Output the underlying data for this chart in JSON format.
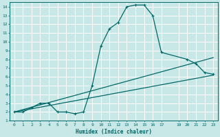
{
  "xlabel": "Humidex (Indice chaleur)",
  "bg_color": "#c8e8e8",
  "grid_color": "#ffffff",
  "line_color": "#006666",
  "xlim": [
    -0.5,
    23.5
  ],
  "ylim": [
    1,
    14.5
  ],
  "xticks": [
    0,
    1,
    2,
    3,
    4,
    5,
    6,
    7,
    8,
    9,
    10,
    11,
    12,
    13,
    14,
    15,
    16,
    17,
    19,
    20,
    21,
    22,
    23
  ],
  "yticks": [
    1,
    2,
    3,
    4,
    5,
    6,
    7,
    8,
    9,
    10,
    11,
    12,
    13,
    14
  ],
  "curve1_x": [
    0,
    1,
    2,
    3,
    4,
    5,
    6,
    7,
    8,
    9,
    10,
    11,
    12,
    13,
    14,
    15,
    16,
    17,
    20,
    21,
    22,
    23
  ],
  "curve1_y": [
    2,
    2,
    2.5,
    3,
    3,
    2,
    2,
    1.8,
    2,
    5,
    9.5,
    11.5,
    12.2,
    14,
    14.2,
    14.2,
    13,
    8.8,
    8,
    7.5,
    6.5,
    6.3
  ],
  "line2_x": [
    0,
    23
  ],
  "line2_y": [
    2,
    8.2
  ],
  "line3_x": [
    0,
    23
  ],
  "line3_y": [
    2,
    6.2
  ]
}
